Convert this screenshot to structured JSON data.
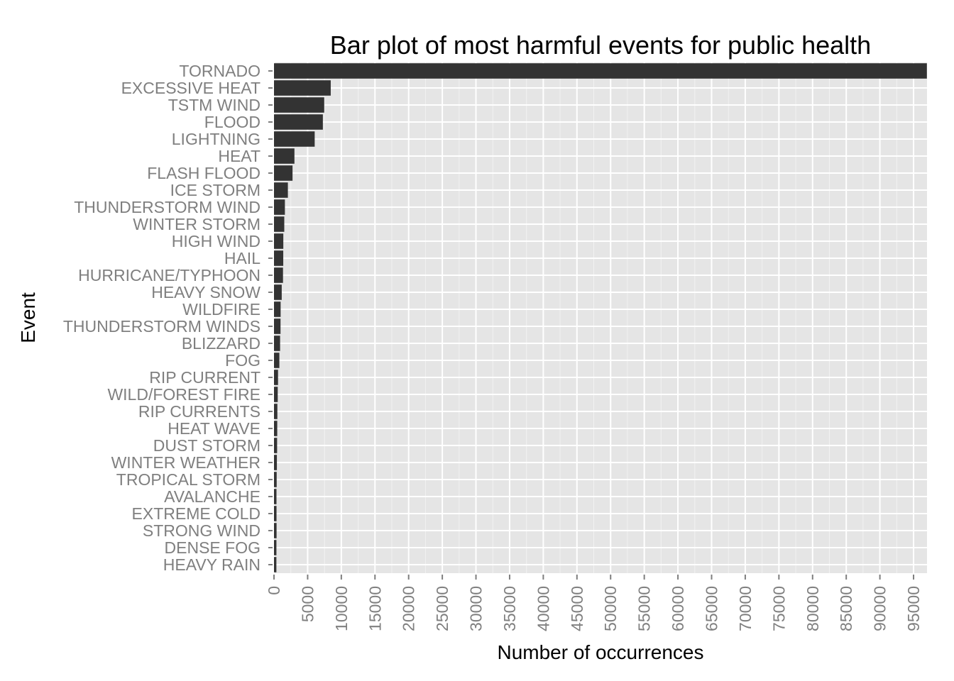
{
  "chart_data": {
    "type": "bar",
    "orientation": "horizontal",
    "title": "Bar plot of most harmful events for public health",
    "xlabel": "Number of occurrences",
    "ylabel": "Event",
    "categories": [
      "TORNADO",
      "EXCESSIVE HEAT",
      "TSTM WIND",
      "FLOOD",
      "LIGHTNING",
      "HEAT",
      "FLASH FLOOD",
      "ICE STORM",
      "THUNDERSTORM WIND",
      "WINTER STORM",
      "HIGH WIND",
      "HAIL",
      "HURRICANE/TYPHOON",
      "HEAVY SNOW",
      "WILDFIRE",
      "THUNDERSTORM WINDS",
      "BLIZZARD",
      "FOG",
      "RIP CURRENT",
      "WILD/FOREST FIRE",
      "RIP CURRENTS",
      "HEAT WAVE",
      "DUST STORM",
      "WINTER WEATHER",
      "TROPICAL STORM",
      "AVALANCHE",
      "EXTREME COLD",
      "STRONG WIND",
      "DENSE FOG",
      "HEAVY RAIN"
    ],
    "values": [
      96979,
      8428,
      7461,
      7259,
      6046,
      3037,
      2755,
      2064,
      1621,
      1527,
      1385,
      1376,
      1339,
      1148,
      986,
      972,
      906,
      796,
      600,
      557,
      501,
      481,
      462,
      431,
      398,
      369,
      375,
      383,
      360,
      355
    ],
    "xlim": [
      0,
      97000
    ],
    "xticks": [
      0,
      5000,
      10000,
      15000,
      20000,
      25000,
      30000,
      35000,
      40000,
      45000,
      50000,
      55000,
      60000,
      65000,
      70000,
      75000,
      80000,
      85000,
      90000,
      95000
    ],
    "grid": true,
    "legend": "none",
    "colors": {
      "bar": "#333333",
      "panel": "#e5e5e5",
      "grid": "#ffffff",
      "tick_text": "#7f7f7f"
    }
  }
}
